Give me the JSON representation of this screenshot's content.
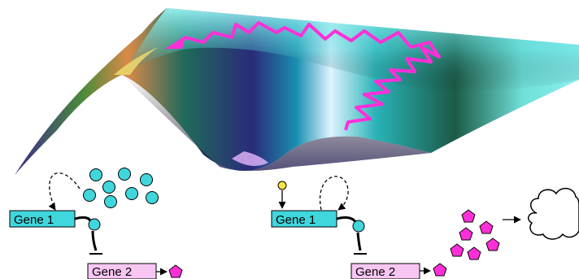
{
  "figure": {
    "landscape": {
      "trajectory_color": "#ff2fd8",
      "surface_colors": [
        "#8af0f0",
        "#2aa4a8",
        "#1c5a4a",
        "#2a1f6e",
        "#d6a8f0",
        "#e6cf4a"
      ]
    },
    "left_panel": {
      "gene1": {
        "label": "Gene 1",
        "fill": "#3fd6dc"
      },
      "gene2": {
        "label": "Gene 2",
        "fill": "#f7c6f2"
      },
      "molecule_color": "#3fd6dc",
      "product_color": "#ff2fd8",
      "molecule_count": 8
    },
    "right_panel": {
      "gene1": {
        "label": "Gene 1",
        "fill": "#3fd6dc"
      },
      "gene2": {
        "label": "Gene 2",
        "fill": "#f7c6f2"
      },
      "signal_color": "#f5e642",
      "molecule_color": "#3fd6dc",
      "product_color": "#ff2fd8",
      "product_count": 7,
      "cloud_icon": "cloud-icon"
    }
  }
}
